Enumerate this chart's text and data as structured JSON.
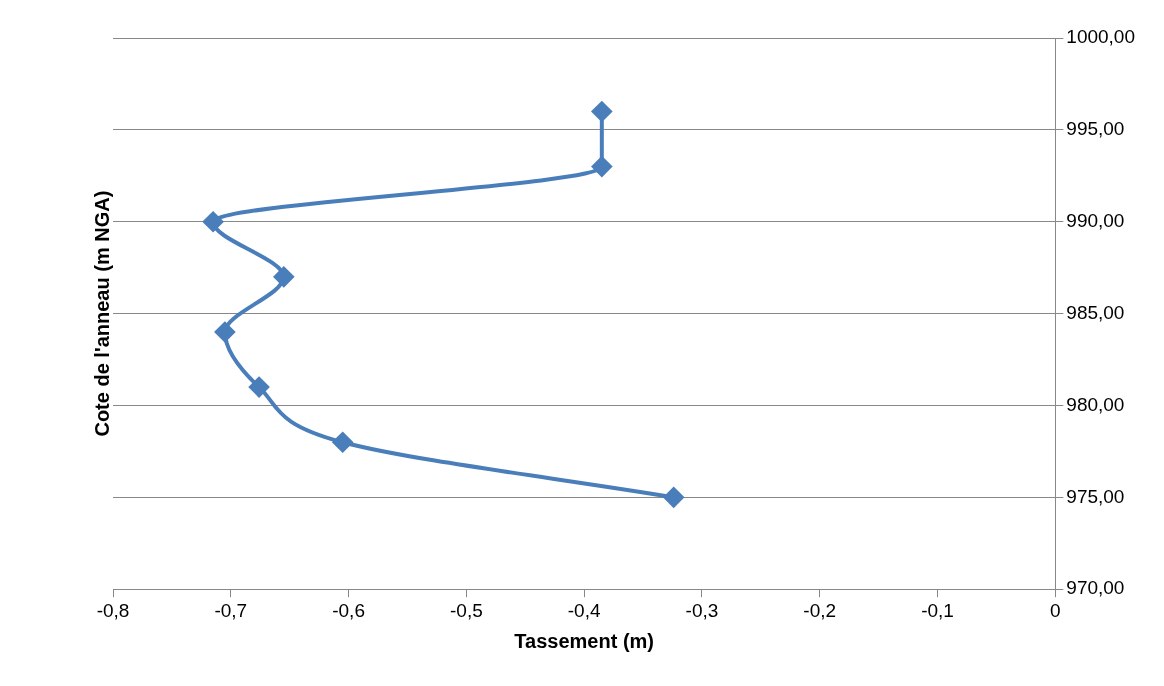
{
  "chart_data": {
    "type": "line",
    "xlabel": "Tassement (m)",
    "ylabel": "Cote de l'anneau (m NGA)",
    "x": [
      -0.385,
      -0.385,
      -0.715,
      -0.655,
      -0.705,
      -0.676,
      -0.605,
      -0.324
    ],
    "values": [
      996,
      993,
      990,
      987,
      984,
      981,
      978,
      975
    ],
    "color": "#4a7ebb",
    "marker": "diamond",
    "line_style": "solid",
    "legend": false,
    "grid": "y",
    "xlim": [
      -0.8,
      0
    ],
    "xticks": [
      {
        "value": -0.8,
        "label": "-0,8"
      },
      {
        "value": -0.7,
        "label": "-0,7"
      },
      {
        "value": -0.6,
        "label": "-0,6"
      },
      {
        "value": -0.5,
        "label": "-0,5"
      },
      {
        "value": -0.4,
        "label": "-0,4"
      },
      {
        "value": -0.3,
        "label": "-0,3"
      },
      {
        "value": -0.2,
        "label": "-0,2"
      },
      {
        "value": -0.1,
        "label": "-0,1"
      },
      0
    ],
    "ylim": [
      970,
      1000
    ],
    "yticks": [
      {
        "value": 970,
        "label": "970,00"
      },
      {
        "value": 975,
        "label": "975,00"
      },
      {
        "value": 980,
        "label": "980,00"
      },
      {
        "value": 985,
        "label": "985,00"
      },
      {
        "value": 990,
        "label": "990,00"
      },
      {
        "value": 995,
        "label": "995,00"
      },
      {
        "value": 1000,
        "label": "1000,00"
      }
    ]
  }
}
